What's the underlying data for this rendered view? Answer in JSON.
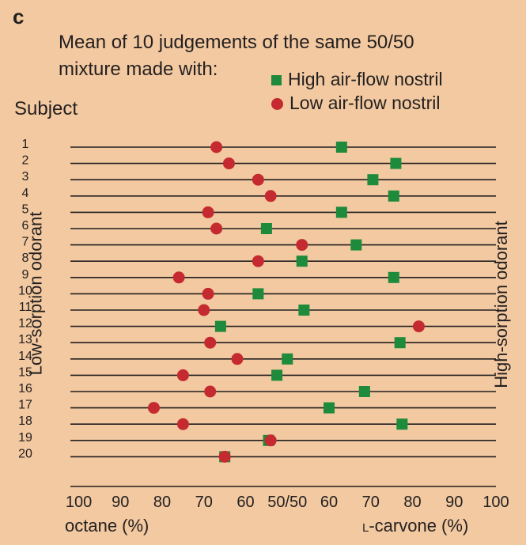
{
  "panel_label": "c",
  "colors": {
    "background": "#f2c9a0",
    "high_marker": "#1e8a3c",
    "low_marker": "#c42a30",
    "line": "#231f20"
  },
  "chart_data": {
    "type": "scatter",
    "title_line1": "Mean of 10 judgements of the same 50/50",
    "title_line2": "mixture made with:",
    "subject_heading": "Subject",
    "left_side_label": "Low-sorption odorant",
    "right_side_label": "High-sorption odorant",
    "x_axis_left_label": "octane (%)",
    "x_axis_right_label_prefix": "L",
    "x_axis_right_label_rest": "-carvone (%)",
    "tick_labels": [
      "100",
      "90",
      "80",
      "70",
      "60",
      "50/50",
      "60",
      "70",
      "80",
      "90",
      "100"
    ],
    "tick_values": [
      -50,
      -40,
      -30,
      -20,
      -10,
      0,
      10,
      20,
      30,
      40,
      50
    ],
    "xlim": [
      -52,
      50
    ],
    "subjects": [
      "1",
      "2",
      "3",
      "4",
      "5",
      "6",
      "7",
      "8",
      "9",
      "10",
      "11",
      "12",
      "13",
      "14",
      "15",
      "16",
      "17",
      "18",
      "19",
      "20"
    ],
    "series": [
      {
        "name": "High air-flow nostril",
        "marker": "square",
        "values": [
          13,
          26,
          20.5,
          25.5,
          13,
          -5,
          16.5,
          3.5,
          25.5,
          -7,
          4,
          -16,
          27,
          0,
          -2.5,
          18.5,
          10,
          27.5,
          -4.5,
          -15
        ]
      },
      {
        "name": "Low air-flow nostril",
        "marker": "circle",
        "values": [
          -17,
          -14,
          -7,
          -4,
          -19,
          -17,
          3.5,
          -7,
          -26,
          -19,
          -20,
          31.5,
          -18.5,
          -12,
          -25,
          -18.5,
          -32,
          -25,
          -4,
          -15
        ]
      }
    ]
  }
}
